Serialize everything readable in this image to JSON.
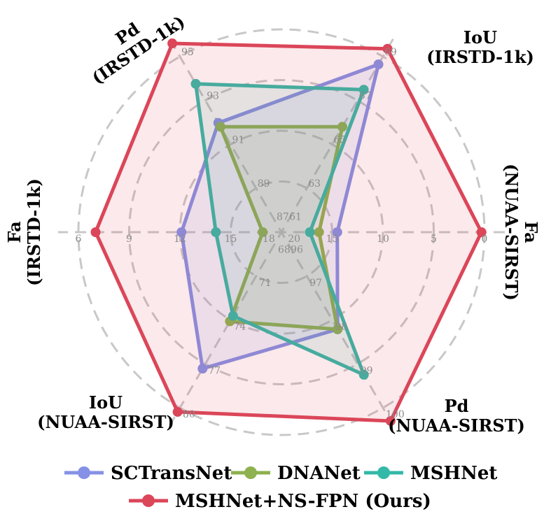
{
  "chart_data": {
    "type": "radar",
    "axes": [
      {
        "id": "fa-nuaa",
        "label_lines": [
          "Fa",
          "(NUAA-SIRST)"
        ],
        "ticks": [
          "0",
          "5",
          "10",
          "15",
          "20"
        ]
      },
      {
        "id": "iou-irstd",
        "label_lines": [
          "IoU",
          "(IRSTD-1k)"
        ],
        "ticks": [
          "69",
          "67",
          "65",
          "63",
          "61"
        ]
      },
      {
        "id": "pd-irstd",
        "label_lines": [
          "Pd",
          "(IRSTD-1k)"
        ],
        "ticks": [
          "95",
          "93",
          "91",
          "89",
          "87"
        ]
      },
      {
        "id": "fa-irstd",
        "label_lines": [
          "Fa",
          "(IRSTD-1k)"
        ],
        "ticks": [
          "6",
          "9",
          "12",
          "15",
          "18"
        ]
      },
      {
        "id": "iou-nuaa",
        "label_lines": [
          "IoU",
          "(NUAA-SIRST)"
        ],
        "ticks": [
          "80",
          "77",
          "74",
          "71",
          "68"
        ]
      },
      {
        "id": "pd-nuaa",
        "label_lines": [
          "Pd",
          "(NUAA-SIRST)"
        ],
        "ticks": [
          "100",
          "99",
          "98",
          "97",
          "96"
        ]
      }
    ],
    "ring_levels": [
      1,
      2,
      3,
      4
    ],
    "tick_levels": [
      4,
      3,
      2,
      1,
      0.25
    ],
    "outer_level": 4.3,
    "series": [
      {
        "name": "SCTransNet",
        "color": "#8591e6",
        "values": [
          14.5,
          68.6,
          91.6,
          12.6,
          77.1,
          98.1
        ]
      },
      {
        "name": "DNANet",
        "color": "#8db24f",
        "values": [
          16.3,
          65.4,
          91.4,
          17.8,
          73.6,
          98.1
        ]
      },
      {
        "name": "MSHNet",
        "color": "#33b9a8",
        "values": [
          17.2,
          67.3,
          93.6,
          14.8,
          73.2,
          99.2
        ]
      },
      {
        "name": "MSHNet+NS-FPN (Ours)",
        "color": "#db4659",
        "values": [
          0.3,
          69.4,
          95.8,
          7.1,
          80.3,
          100.3
        ]
      }
    ],
    "legend": {
      "position": "bottom"
    },
    "grid": true
  }
}
